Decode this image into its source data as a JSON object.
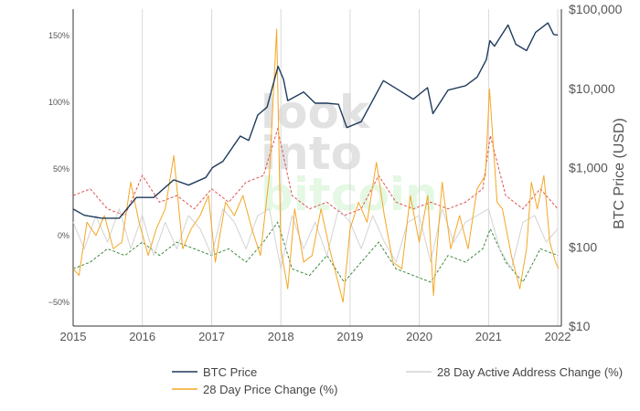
{
  "chart_data": {
    "type": "line",
    "title": "",
    "watermark": [
      "look",
      "into",
      "bitcoin"
    ],
    "x_ticks": [
      "2015",
      "2016",
      "2017",
      "2018",
      "2019",
      "2020",
      "2021",
      "2022"
    ],
    "xlim": [
      "2015-01-01",
      "2022-01-20"
    ],
    "y_left": {
      "label": "",
      "ticks": [
        "150%",
        "100%",
        "50%",
        "0%",
        "−50%"
      ],
      "tick_values": [
        150,
        100,
        50,
        0,
        -50
      ],
      "range": [
        -68,
        170
      ]
    },
    "y_right": {
      "label": "BTC Price (USD)",
      "scale": "log",
      "ticks": [
        "$100,000",
        "$10,000",
        "$1,000",
        "$100",
        "$10"
      ],
      "tick_values": [
        100000,
        10000,
        1000,
        100,
        10
      ],
      "range": [
        10,
        100000
      ]
    },
    "grid": {
      "vertical": true,
      "horizontal": false
    },
    "legend_position": "bottom",
    "series": [
      {
        "name": "BTC Price",
        "color": "#1f3b5c",
        "axis": "right",
        "x": [
          "2015-01-01",
          "2015-03-01",
          "2015-06-01",
          "2015-09-01",
          "2015-12-01",
          "2016-03-01",
          "2016-06-15",
          "2016-09-01",
          "2016-12-01",
          "2017-01-05",
          "2017-03-01",
          "2017-06-01",
          "2017-07-15",
          "2017-09-01",
          "2017-10-20",
          "2017-12-17",
          "2018-01-15",
          "2018-02-06",
          "2018-05-01",
          "2018-07-01",
          "2018-09-01",
          "2018-11-01",
          "2018-12-15",
          "2019-03-01",
          "2019-06-26",
          "2019-09-01",
          "2019-12-01",
          "2020-02-14",
          "2020-03-13",
          "2020-06-01",
          "2020-09-01",
          "2020-11-01",
          "2020-12-20",
          "2021-01-08",
          "2021-02-01",
          "2021-04-14",
          "2021-05-25",
          "2021-07-20",
          "2021-09-06",
          "2021-11-10",
          "2021-12-10",
          "2022-01-01"
        ],
        "values": [
          300,
          250,
          230,
          230,
          420,
          420,
          700,
          600,
          750,
          1000,
          1200,
          2500,
          2200,
          4600,
          5800,
          19000,
          13000,
          7000,
          9000,
          6500,
          6500,
          6300,
          3200,
          3800,
          12500,
          10000,
          7300,
          10200,
          4800,
          9500,
          10800,
          13800,
          23000,
          40000,
          34000,
          63000,
          36000,
          30000,
          51000,
          67000,
          48000,
          47000
        ]
      },
      {
        "name": "28 Day Price Change (%)",
        "color": "#f5a623",
        "axis": "left",
        "x": [
          "2015-01-01",
          "2015-02-01",
          "2015-03-15",
          "2015-05-01",
          "2015-06-15",
          "2015-08-01",
          "2015-09-15",
          "2015-11-01",
          "2015-12-15",
          "2016-02-01",
          "2016-03-15",
          "2016-05-01",
          "2016-06-15",
          "2016-08-01",
          "2016-09-15",
          "2016-11-01",
          "2016-12-15",
          "2017-01-20",
          "2017-03-15",
          "2017-05-01",
          "2017-06-15",
          "2017-08-01",
          "2017-09-15",
          "2017-11-01",
          "2017-12-10",
          "2018-01-01",
          "2018-02-06",
          "2018-03-15",
          "2018-05-01",
          "2018-06-15",
          "2018-08-01",
          "2018-09-15",
          "2018-11-25",
          "2019-01-01",
          "2019-02-15",
          "2019-04-01",
          "2019-05-20",
          "2019-07-01",
          "2019-08-15",
          "2019-10-01",
          "2019-11-15",
          "2020-01-01",
          "2020-02-15",
          "2020-03-16",
          "2020-05-01",
          "2020-06-15",
          "2020-08-01",
          "2020-09-15",
          "2020-11-01",
          "2020-12-15",
          "2021-01-06",
          "2021-02-15",
          "2021-03-15",
          "2021-05-01",
          "2021-06-15",
          "2021-07-20",
          "2021-08-15",
          "2021-09-15",
          "2021-10-20",
          "2021-11-20",
          "2021-12-20",
          "2022-01-05"
        ],
        "values": [
          -25,
          -30,
          10,
          0,
          15,
          -10,
          -5,
          40,
          10,
          -15,
          5,
          20,
          60,
          -10,
          5,
          15,
          30,
          -20,
          25,
          15,
          30,
          5,
          -15,
          45,
          155,
          -10,
          -40,
          20,
          -20,
          -15,
          20,
          -10,
          -50,
          5,
          25,
          10,
          55,
          15,
          -20,
          -25,
          30,
          -5,
          30,
          -45,
          40,
          -10,
          15,
          -10,
          35,
          45,
          110,
          25,
          20,
          -15,
          -40,
          -10,
          40,
          20,
          45,
          -5,
          -20,
          -25
        ]
      },
      {
        "name": "28 Day Active Address Change (%)",
        "color": "#d3d3d3",
        "axis": "left",
        "x": [
          "2015-01-01",
          "2015-03-01",
          "2015-05-01",
          "2015-07-01",
          "2015-09-01",
          "2015-11-01",
          "2016-01-01",
          "2016-03-01",
          "2016-05-01",
          "2016-07-01",
          "2016-09-01",
          "2016-11-01",
          "2017-01-01",
          "2017-03-01",
          "2017-05-01",
          "2017-07-01",
          "2017-09-01",
          "2017-11-01",
          "2018-01-01",
          "2018-03-01",
          "2018-05-01",
          "2018-07-01",
          "2018-09-01",
          "2018-11-01",
          "2019-01-01",
          "2019-03-01",
          "2019-05-01",
          "2019-07-01",
          "2019-09-01",
          "2019-11-01",
          "2020-01-01",
          "2020-03-01",
          "2020-05-01",
          "2020-07-01",
          "2020-09-01",
          "2020-11-01",
          "2021-01-01",
          "2021-03-01",
          "2021-05-01",
          "2021-07-01",
          "2021-09-01",
          "2021-11-01",
          "2022-01-01"
        ],
        "values": [
          10,
          -10,
          15,
          -5,
          20,
          -10,
          15,
          -15,
          10,
          -10,
          15,
          5,
          -15,
          20,
          10,
          -10,
          15,
          20,
          -25,
          15,
          -10,
          10,
          -15,
          20,
          10,
          -10,
          15,
          -5,
          -20,
          10,
          15,
          -20,
          20,
          -5,
          10,
          15,
          20,
          -10,
          -25,
          10,
          15,
          -5,
          5
        ]
      }
    ],
    "auxiliary_bands": [
      {
        "style": "dashed",
        "color": "#e05252",
        "axis": "left",
        "x": [
          "2015-01-01",
          "2015-04-01",
          "2015-07-01",
          "2015-10-01",
          "2016-01-01",
          "2016-04-01",
          "2016-07-01",
          "2016-10-01",
          "2017-01-01",
          "2017-04-01",
          "2017-07-01",
          "2017-10-01",
          "2017-12-15",
          "2018-03-01",
          "2018-06-01",
          "2018-09-01",
          "2018-12-01",
          "2019-03-01",
          "2019-06-01",
          "2019-09-01",
          "2019-12-01",
          "2020-03-01",
          "2020-06-01",
          "2020-09-01",
          "2020-12-01",
          "2021-01-10",
          "2021-04-01",
          "2021-07-01",
          "2021-10-01",
          "2022-01-01"
        ],
        "values": [
          30,
          35,
          20,
          15,
          45,
          25,
          30,
          20,
          35,
          25,
          40,
          45,
          80,
          30,
          20,
          25,
          15,
          20,
          45,
          25,
          20,
          25,
          20,
          25,
          35,
          75,
          30,
          20,
          35,
          20
        ]
      },
      {
        "style": "dashed",
        "color": "#3d8a3d",
        "axis": "left",
        "x": [
          "2015-01-01",
          "2015-04-01",
          "2015-07-01",
          "2015-10-01",
          "2016-01-01",
          "2016-04-01",
          "2016-07-01",
          "2016-10-01",
          "2017-01-01",
          "2017-04-01",
          "2017-07-01",
          "2017-10-01",
          "2017-12-15",
          "2018-03-01",
          "2018-06-01",
          "2018-09-01",
          "2018-12-01",
          "2019-03-01",
          "2019-06-01",
          "2019-09-01",
          "2019-12-01",
          "2020-03-01",
          "2020-06-01",
          "2020-09-01",
          "2020-12-01",
          "2021-01-10",
          "2021-04-01",
          "2021-07-01",
          "2021-10-01",
          "2022-01-01"
        ],
        "values": [
          -25,
          -20,
          -10,
          -15,
          -5,
          -15,
          -5,
          -10,
          -15,
          -10,
          -20,
          -5,
          10,
          -25,
          -30,
          -15,
          -35,
          -20,
          -5,
          -25,
          -30,
          -35,
          -15,
          -20,
          -10,
          5,
          -20,
          -35,
          -10,
          -15
        ]
      }
    ]
  }
}
